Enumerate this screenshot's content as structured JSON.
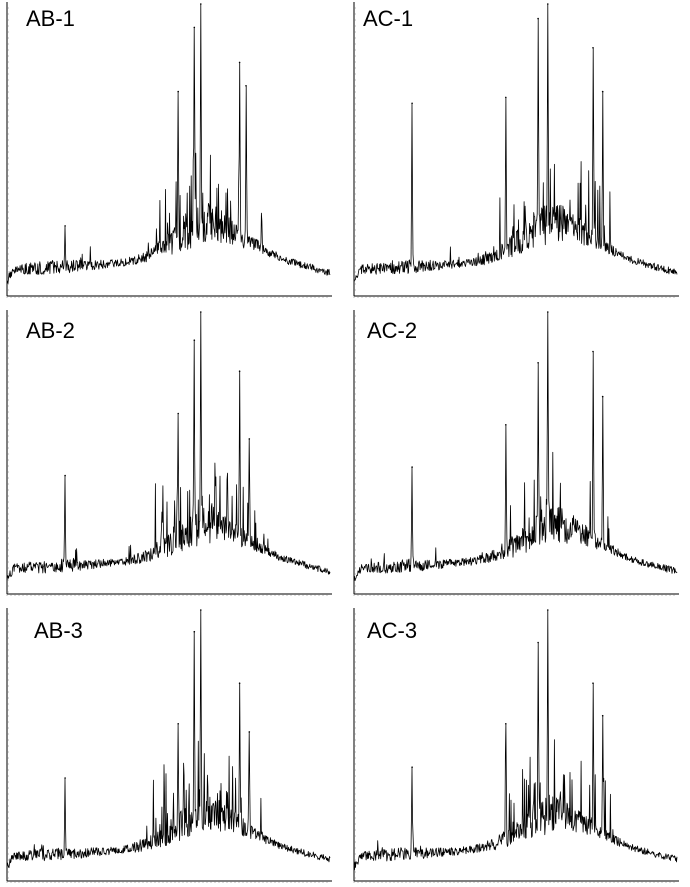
{
  "chart_data": [
    {
      "type": "line",
      "title": "AB-1",
      "peaks": [
        [
          0.18,
          0.24
        ],
        [
          0.53,
          0.7
        ],
        [
          0.58,
          0.92
        ],
        [
          0.6,
          1.0
        ],
        [
          0.72,
          0.8
        ],
        [
          0.74,
          0.72
        ]
      ]
    },
    {
      "type": "line",
      "title": "AC-1",
      "peaks": [
        [
          0.18,
          0.66
        ],
        [
          0.47,
          0.68
        ],
        [
          0.57,
          0.95
        ],
        [
          0.6,
          1.0
        ],
        [
          0.74,
          0.85
        ],
        [
          0.77,
          0.7
        ]
      ]
    },
    {
      "type": "line",
      "title": "AB-2",
      "peaks": [
        [
          0.18,
          0.42
        ],
        [
          0.53,
          0.64
        ],
        [
          0.58,
          0.9
        ],
        [
          0.6,
          1.0
        ],
        [
          0.72,
          0.79
        ],
        [
          0.75,
          0.55
        ]
      ]
    },
    {
      "type": "line",
      "title": "AC-2",
      "peaks": [
        [
          0.18,
          0.45
        ],
        [
          0.47,
          0.6
        ],
        [
          0.57,
          0.82
        ],
        [
          0.6,
          1.0
        ],
        [
          0.74,
          0.86
        ],
        [
          0.77,
          0.7
        ]
      ]
    },
    {
      "type": "line",
      "title": "AB-3",
      "peaks": [
        [
          0.18,
          0.38
        ],
        [
          0.53,
          0.58
        ],
        [
          0.58,
          0.92
        ],
        [
          0.6,
          1.0
        ],
        [
          0.72,
          0.73
        ],
        [
          0.75,
          0.55
        ]
      ]
    },
    {
      "type": "line",
      "title": "AC-3",
      "peaks": [
        [
          0.18,
          0.42
        ],
        [
          0.47,
          0.58
        ],
        [
          0.57,
          0.88
        ],
        [
          0.6,
          1.0
        ],
        [
          0.74,
          0.73
        ],
        [
          0.77,
          0.61
        ]
      ]
    }
  ]
}
